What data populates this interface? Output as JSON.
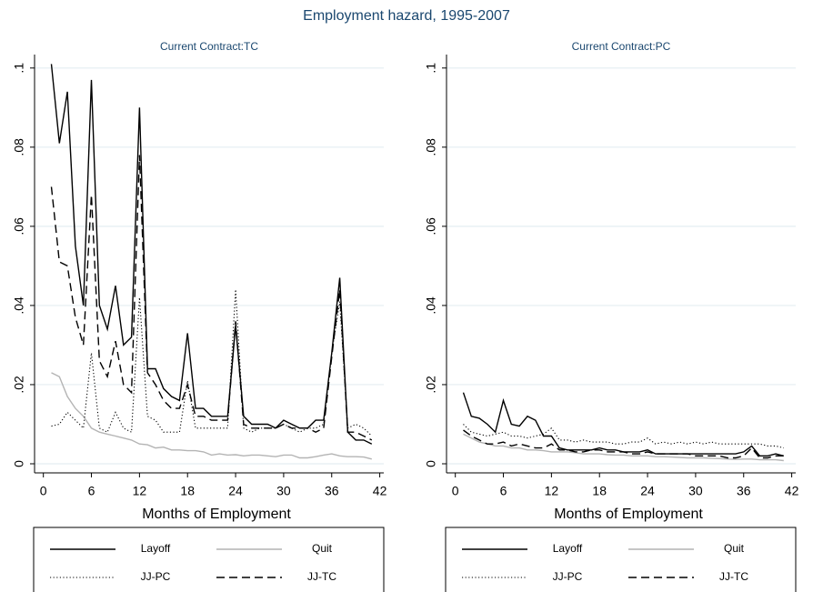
{
  "title": "Employment hazard, 1995-2007",
  "chart_data": [
    {
      "type": "line",
      "title": "Current Contract:TC",
      "x_label": "Months of Employment",
      "x": [
        1,
        2,
        3,
        4,
        5,
        6,
        7,
        8,
        9,
        10,
        11,
        12,
        13,
        14,
        15,
        16,
        17,
        18,
        19,
        20,
        21,
        22,
        23,
        24,
        25,
        26,
        27,
        28,
        29,
        30,
        31,
        32,
        33,
        34,
        35,
        36,
        37,
        38,
        39,
        40,
        41
      ],
      "xlim": [
        -1.1,
        42.5
      ],
      "xticks": [
        0,
        6,
        12,
        18,
        24,
        30,
        36,
        42
      ],
      "ylim": [
        -0.0023,
        0.1034
      ],
      "yticks": [
        0,
        {
          "value": 0.02,
          "label": ".02"
        },
        {
          "value": 0.04,
          "label": ".04"
        },
        {
          "value": 0.06,
          "label": ".06"
        },
        {
          "value": 0.08,
          "label": ".08"
        },
        {
          "value": 0.1,
          "label": ".1"
        }
      ],
      "grid": true,
      "legend": "bottom",
      "series": [
        {
          "name": "Layoff",
          "color": "#000000",
          "dash": "solid",
          "values": [
            0.101,
            0.081,
            0.094,
            0.055,
            0.04,
            0.097,
            0.04,
            0.034,
            0.045,
            0.03,
            0.032,
            0.09,
            0.024,
            0.024,
            0.019,
            0.017,
            0.016,
            0.033,
            0.014,
            0.014,
            0.012,
            0.012,
            0.012,
            0.035,
            0.012,
            0.01,
            0.01,
            0.01,
            0.009,
            0.011,
            0.01,
            0.009,
            0.009,
            0.011,
            0.011,
            0.028,
            0.047,
            0.008,
            0.006,
            0.006,
            0.005
          ]
        },
        {
          "name": "Quit",
          "color": "#b4b4b4",
          "dash": "solid",
          "values": [
            0.023,
            0.022,
            0.017,
            0.014,
            0.012,
            0.009,
            0.008,
            0.0075,
            0.007,
            0.0065,
            0.006,
            0.005,
            0.0048,
            0.004,
            0.0042,
            0.0035,
            0.0035,
            0.0033,
            0.0033,
            0.003,
            0.0022,
            0.0025,
            0.0022,
            0.0023,
            0.002,
            0.0022,
            0.0022,
            0.002,
            0.0018,
            0.0022,
            0.0022,
            0.0015,
            0.0015,
            0.0018,
            0.0022,
            0.0025,
            0.002,
            0.0018,
            0.0018,
            0.0017,
            0.0012
          ]
        },
        {
          "name": "JJ-PC",
          "color": "#000000",
          "dash": "dotted",
          "values": [
            0.0095,
            0.01,
            0.013,
            0.011,
            0.009,
            0.028,
            0.009,
            0.008,
            0.013,
            0.009,
            0.008,
            0.042,
            0.012,
            0.011,
            0.008,
            0.008,
            0.008,
            0.021,
            0.009,
            0.009,
            0.009,
            0.009,
            0.009,
            0.044,
            0.009,
            0.008,
            0.009,
            0.009,
            0.009,
            0.01,
            0.009,
            0.008,
            0.009,
            0.009,
            0.01,
            0.028,
            0.041,
            0.009,
            0.01,
            0.009,
            0.007
          ]
        },
        {
          "name": "JJ-TC",
          "color": "#000000",
          "dash": "dashed",
          "values": [
            0.07,
            0.051,
            0.05,
            0.037,
            0.03,
            0.068,
            0.026,
            0.022,
            0.031,
            0.02,
            0.018,
            0.078,
            0.023,
            0.02,
            0.016,
            0.014,
            0.014,
            0.02,
            0.012,
            0.012,
            0.011,
            0.011,
            0.011,
            0.036,
            0.01,
            0.009,
            0.009,
            0.009,
            0.009,
            0.01,
            0.009,
            0.009,
            0.009,
            0.008,
            0.009,
            0.027,
            0.044,
            0.008,
            0.008,
            0.007,
            0.006
          ]
        }
      ]
    },
    {
      "type": "line",
      "title": "Current Contract:PC",
      "x_label": "Months of Employment",
      "x": [
        1,
        2,
        3,
        4,
        5,
        6,
        7,
        8,
        9,
        10,
        11,
        12,
        13,
        14,
        15,
        16,
        17,
        18,
        19,
        20,
        21,
        22,
        23,
        24,
        25,
        26,
        27,
        28,
        29,
        30,
        31,
        32,
        33,
        34,
        35,
        36,
        37,
        38,
        39,
        40,
        41
      ],
      "xlim": [
        -1.1,
        42.5
      ],
      "xticks": [
        0,
        6,
        12,
        18,
        24,
        30,
        36,
        42
      ],
      "ylim": [
        -0.0023,
        0.1034
      ],
      "yticks": [
        0,
        {
          "value": 0.02,
          "label": ".02"
        },
        {
          "value": 0.04,
          "label": ".04"
        },
        {
          "value": 0.06,
          "label": ".06"
        },
        {
          "value": 0.08,
          "label": ".08"
        },
        {
          "value": 0.1,
          "label": ".1"
        }
      ],
      "grid": true,
      "legend": "bottom",
      "series": [
        {
          "name": "Layoff",
          "color": "#000000",
          "dash": "solid",
          "values": [
            0.018,
            0.012,
            0.0115,
            0.01,
            0.008,
            0.016,
            0.01,
            0.0095,
            0.012,
            0.011,
            0.007,
            0.007,
            0.004,
            0.0035,
            0.0035,
            0.0035,
            0.0035,
            0.004,
            0.0035,
            0.0035,
            0.003,
            0.003,
            0.003,
            0.0035,
            0.0025,
            0.0025,
            0.0025,
            0.0025,
            0.0025,
            0.0025,
            0.0025,
            0.0025,
            0.0025,
            0.0025,
            0.0025,
            0.003,
            0.0045,
            0.002,
            0.002,
            0.0025,
            0.002
          ]
        },
        {
          "name": "Quit",
          "color": "#b4b4b4",
          "dash": "solid",
          "values": [
            0.0075,
            0.0065,
            0.0055,
            0.005,
            0.0045,
            0.0045,
            0.004,
            0.004,
            0.0035,
            0.0035,
            0.0033,
            0.003,
            0.003,
            0.003,
            0.0028,
            0.0025,
            0.0025,
            0.0025,
            0.0023,
            0.0022,
            0.0022,
            0.002,
            0.002,
            0.002,
            0.0018,
            0.0018,
            0.0017,
            0.0016,
            0.0015,
            0.0015,
            0.0015,
            0.0014,
            0.0013,
            0.0012,
            0.0011,
            0.0012,
            0.0012,
            0.001,
            0.001,
            0.001,
            0.0008
          ]
        },
        {
          "name": "JJ-PC",
          "color": "#000000",
          "dash": "dotted",
          "values": [
            0.01,
            0.008,
            0.0075,
            0.007,
            0.0075,
            0.008,
            0.007,
            0.007,
            0.0065,
            0.007,
            0.0075,
            0.009,
            0.006,
            0.006,
            0.0055,
            0.006,
            0.0055,
            0.0055,
            0.0055,
            0.005,
            0.005,
            0.0055,
            0.0055,
            0.0065,
            0.005,
            0.0055,
            0.005,
            0.0055,
            0.005,
            0.0055,
            0.005,
            0.0055,
            0.005,
            0.005,
            0.005,
            0.005,
            0.005,
            0.005,
            0.0045,
            0.0045,
            0.004
          ]
        },
        {
          "name": "JJ-TC",
          "color": "#000000",
          "dash": "dashed",
          "values": [
            0.0085,
            0.007,
            0.006,
            0.005,
            0.005,
            0.0055,
            0.0045,
            0.005,
            0.0045,
            0.004,
            0.004,
            0.005,
            0.0035,
            0.0035,
            0.003,
            0.003,
            0.0035,
            0.0035,
            0.003,
            0.003,
            0.003,
            0.0025,
            0.0025,
            0.003,
            0.0025,
            0.0025,
            0.0025,
            0.0025,
            0.0025,
            0.002,
            0.002,
            0.002,
            0.002,
            0.0015,
            0.0015,
            0.002,
            0.004,
            0.0015,
            0.0015,
            0.002,
            0.002
          ]
        }
      ]
    }
  ]
}
